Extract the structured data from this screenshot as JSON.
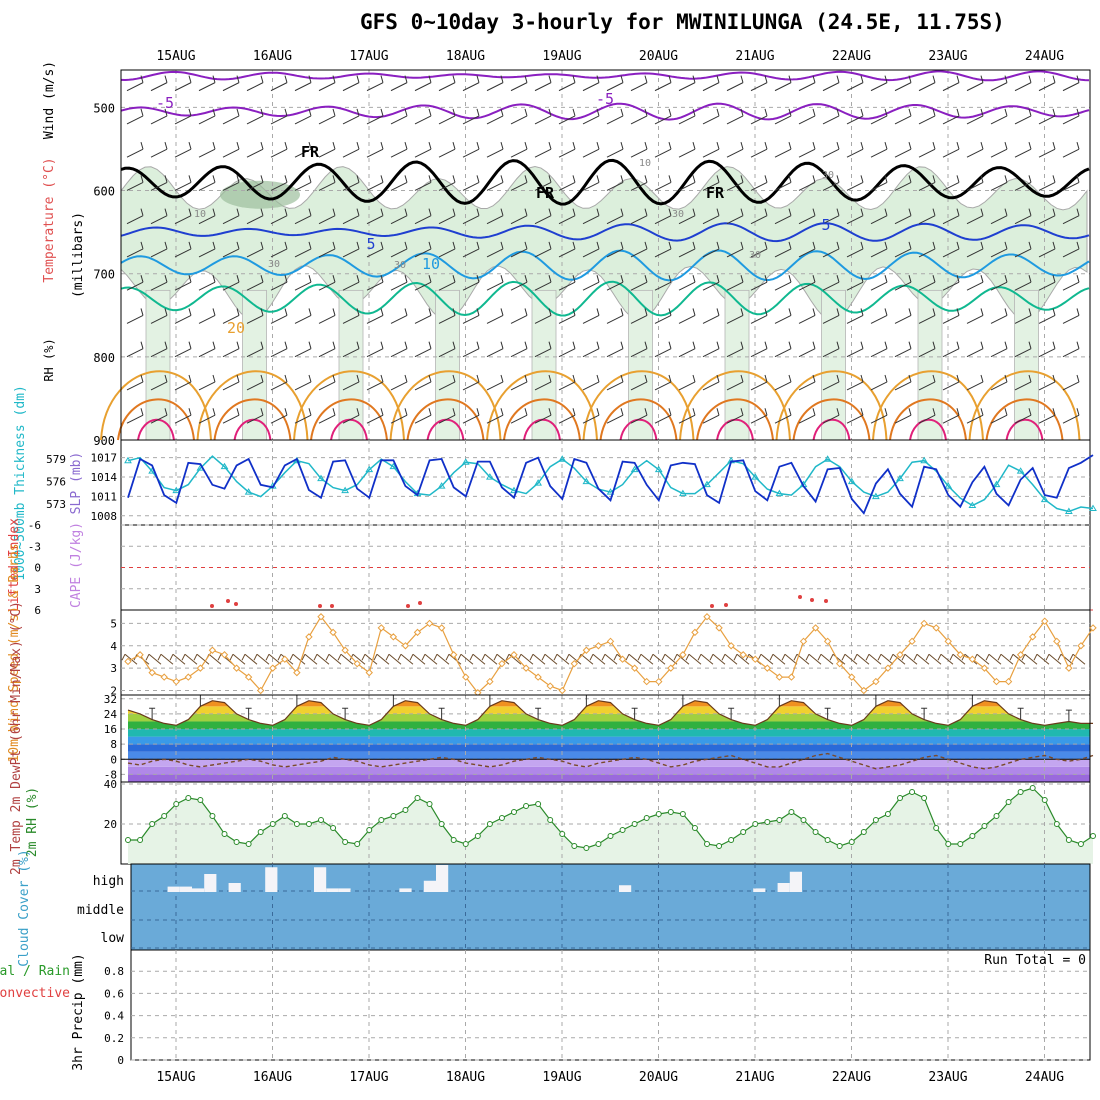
{
  "title": "GFS 0~10day 3-hourly for MWINILUNGA (24.5E, 11.75S)",
  "dates": [
    "15AUG",
    "16AUG",
    "17AUG",
    "18AUG",
    "19AUG",
    "20AUG",
    "21AUG",
    "22AUG",
    "23AUG",
    "24AUG"
  ],
  "colors": {
    "purple": "#8a1fc0",
    "black": "#000000",
    "blue": "#1f3fd0",
    "lightblue": "#1f9ae0",
    "teal": "#10b890",
    "gold": "#e8a030",
    "orange": "#e07820",
    "magenta": "#e0207a",
    "cyan": "#20b8c8",
    "slpblue": "#1030c8",
    "rhgreen": "#2a8a2a",
    "cloud": "#6aaad8"
  },
  "chart_data": [
    {
      "type": "heatmap",
      "panel": "upper_air",
      "ylabel": "(millibars)",
      "side_labels": [
        "Wind (m/s)",
        "Temperature (°C)",
        "RH (%)"
      ],
      "yticks": [
        500,
        600,
        700,
        800,
        900
      ],
      "ylim": [
        455,
        900
      ],
      "contour_labels": [
        "-5",
        "-5",
        "FR",
        "FR",
        "FR",
        "10",
        "10",
        "30",
        "30",
        "30",
        "30",
        "30",
        "5",
        "5",
        "10",
        "20"
      ]
    },
    {
      "type": "line",
      "panel": "thickness_slp",
      "ylabel_left": "1000~500mb Thickness (dm)",
      "ylabel_right": "SLP (mb)",
      "yticks_left": [
        579,
        576,
        573
      ],
      "yticks_right": [
        1017,
        1014,
        1011,
        1008
      ],
      "series": [
        {
          "name": "1000~500mb Thickness (dm)",
          "values": [
            578.8,
            579.2,
            577.4,
            575.2,
            574.8,
            575.6,
            577.8,
            579.4,
            578.0,
            576.0,
            574.6,
            574.0,
            575.4,
            577.2,
            578.8,
            578.4,
            576.4,
            575.2,
            574.8,
            575.6,
            577.6,
            579.0,
            578.0,
            576.0,
            574.4,
            574.2,
            575.4,
            577.2,
            578.6,
            578.4,
            576.6,
            575.6,
            574.8,
            574.4,
            575.8,
            578.0,
            579.0,
            577.8,
            576.0,
            575.0,
            574.6,
            575.6,
            577.6,
            578.8,
            577.6,
            575.2,
            574.4,
            574.4,
            575.6,
            577.2,
            578.8,
            578.4,
            576.6,
            575.0,
            574.4,
            574.2,
            575.6,
            578.0,
            579.0,
            578.0,
            576.0,
            574.6,
            574.0,
            574.6,
            576.4,
            578.6,
            578.8,
            577.4,
            575.4,
            573.8,
            572.8,
            573.6,
            575.6,
            578.2,
            577.4,
            575.6,
            573.6,
            572.4,
            572.0,
            572.6,
            572.4
          ]
        },
        {
          "name": "SLP (mb)",
          "values": [
            1010.8,
            1016.8,
            1015.8,
            1011.2,
            1010.0,
            1016.2,
            1016.0,
            1012.8,
            1012.2,
            1015.8,
            1016.8,
            1012.8,
            1012.4,
            1015.8,
            1016.8,
            1012.0,
            1010.8,
            1016.4,
            1016.6,
            1012.2,
            1010.8,
            1016.6,
            1016.6,
            1012.6,
            1011.2,
            1016.6,
            1016.8,
            1012.4,
            1011.0,
            1016.4,
            1016.4,
            1012.4,
            1010.8,
            1016.2,
            1017.0,
            1012.6,
            1010.6,
            1016.8,
            1016.2,
            1012.2,
            1010.4,
            1016.4,
            1016.2,
            1012.8,
            1010.4,
            1015.8,
            1016.2,
            1016.0,
            1011.2,
            1010.0,
            1016.4,
            1016.6,
            1011.8,
            1010.4,
            1015.6,
            1016.2,
            1012.6,
            1010.2,
            1015.2,
            1015.4,
            1010.6,
            1008.4,
            1013.0,
            1015.2,
            1011.4,
            1009.4,
            1015.6,
            1015.2,
            1011.2,
            1009.4,
            1013.2,
            1015.6,
            1011.4,
            1009.6,
            1013.6,
            1015.4,
            1011.2,
            1010.8,
            1015.4,
            1016.2,
            1017.4
          ]
        }
      ]
    },
    {
      "type": "line",
      "panel": "stability",
      "ylabel_left": "Lifted Index",
      "ylabel_right": "CAPE (J/kg)",
      "yticks": [
        -6,
        -3,
        0,
        3,
        6
      ],
      "ylim": [
        -6,
        6
      ],
      "series": [
        {
          "name": "Lifted Index",
          "values": [
            6.9,
            6.9,
            6.9,
            6.9,
            6.9,
            6.9,
            6.9,
            6.9,
            6.9,
            6.9,
            6.9,
            6.9,
            6.9,
            6.9,
            6.9,
            6.9,
            6.9,
            6.9,
            6.9,
            6.9,
            6.9,
            6.9,
            6.9,
            6.9,
            6.9,
            6.9,
            6.9,
            6.9,
            6.9,
            6.9,
            6.9,
            6.9,
            6.9,
            6.9,
            6.9,
            6.9,
            6.9,
            6.9,
            6.9,
            6.9,
            6.9,
            6.9,
            6.9,
            6.9,
            6.9,
            6.9,
            6.9,
            6.9,
            6.9,
            6.9,
            6.9,
            6.9,
            6.9,
            6.9,
            6.9,
            6.9,
            6.9,
            6.9,
            6.9,
            6.9,
            6.9,
            6.9,
            6.9,
            6.9,
            6.9,
            6.9,
            6.9,
            6.9,
            6.9,
            6.9,
            6.9,
            6.9,
            6.9,
            6.9,
            6.9,
            6.9,
            6.9,
            6.9,
            6.9,
            6.9,
            6.9
          ]
        }
      ]
    },
    {
      "type": "line",
      "panel": "wind10m",
      "ylabel": "10m Wind Speed (m/s) & Barbs",
      "yticks": [
        2,
        3,
        4,
        5
      ],
      "ylim": [
        1.8,
        5.6
      ],
      "series": [
        {
          "name": "10m Wind Speed",
          "values": [
            3.3,
            3.6,
            2.8,
            2.6,
            2.4,
            2.6,
            3.0,
            3.8,
            3.6,
            3.0,
            2.6,
            2.0,
            3.0,
            3.4,
            2.8,
            4.4,
            5.3,
            4.6,
            3.8,
            3.2,
            2.8,
            4.8,
            4.4,
            4.0,
            4.6,
            5.0,
            4.8,
            3.6,
            2.6,
            1.9,
            2.4,
            3.2,
            3.6,
            3.0,
            2.6,
            2.2,
            2.0,
            3.2,
            3.8,
            4.0,
            4.2,
            3.4,
            3.0,
            2.4,
            2.4,
            3.0,
            3.6,
            4.6,
            5.3,
            4.8,
            4.0,
            3.6,
            3.4,
            3.0,
            2.6,
            2.6,
            4.2,
            4.8,
            4.2,
            3.2,
            2.6,
            2.0,
            2.4,
            3.0,
            3.6,
            4.2,
            5.0,
            4.8,
            4.2,
            3.6,
            3.4,
            3.0,
            2.4,
            2.4,
            3.6,
            4.4,
            5.1,
            4.2,
            3.0,
            4.0,
            4.8
          ]
        }
      ]
    },
    {
      "type": "area",
      "panel": "temperature2m",
      "ylabel": "2m Temp 2m DewPt (6hr Min/Max) (°C)",
      "yticks": [
        32,
        24,
        16,
        8,
        0,
        -8
      ],
      "ylim": [
        -12,
        34
      ],
      "series": [
        {
          "name": "2m Temp",
          "values": [
            26,
            24,
            21,
            19,
            18,
            21,
            28,
            31,
            30,
            24,
            21,
            19,
            18,
            21,
            28,
            31,
            30,
            24,
            21,
            19,
            18,
            21,
            28,
            31,
            30,
            24,
            21,
            19,
            18,
            21,
            28,
            31,
            30,
            24,
            21,
            19,
            18,
            21,
            28,
            31,
            30,
            24,
            21,
            19,
            18,
            21,
            28,
            31,
            30,
            24,
            21,
            19,
            18,
            21,
            28,
            31,
            30,
            24,
            21,
            19,
            18,
            21,
            28,
            31,
            30,
            24,
            21,
            19,
            18,
            21,
            28,
            31,
            30,
            24,
            21,
            19,
            18,
            19,
            20,
            19,
            19
          ]
        },
        {
          "name": "2m DewPt",
          "values": [
            -2,
            -3,
            -1,
            0,
            -1,
            -3,
            -4,
            -3,
            -2,
            -1,
            0,
            -1,
            -3,
            -4,
            -3,
            -2,
            -1,
            1,
            0,
            -1,
            -3,
            -4,
            -3,
            -2,
            -1,
            0,
            1,
            0,
            -2,
            -3,
            -4,
            -3,
            -1,
            0,
            1,
            0,
            -1,
            -3,
            -4,
            -2,
            -1,
            0,
            1,
            0,
            -2,
            -4,
            -3,
            -1,
            0,
            1,
            2,
            0,
            -2,
            -4,
            -4,
            -2,
            0,
            2,
            3,
            1,
            -1,
            -3,
            -5,
            -4,
            -3,
            -1,
            1,
            2,
            0,
            -2,
            -4,
            -5,
            -4,
            -2,
            0,
            1,
            2,
            0,
            -1,
            0,
            2
          ]
        }
      ]
    },
    {
      "type": "area",
      "panel": "rh2m",
      "ylabel": "2m RH (%)",
      "yticks": [
        40,
        20
      ],
      "ylim": [
        0,
        41
      ],
      "series": [
        {
          "name": "2m RH",
          "values": [
            12,
            12,
            20,
            24,
            30,
            33,
            32,
            24,
            15,
            11,
            10,
            16,
            20,
            24,
            20,
            20,
            22,
            18,
            11,
            10,
            17,
            22,
            24,
            27,
            33,
            30,
            20,
            12,
            10,
            14,
            20,
            23,
            26,
            29,
            30,
            22,
            15,
            9,
            8,
            10,
            14,
            17,
            20,
            23,
            25,
            26,
            25,
            18,
            10,
            9,
            12,
            16,
            20,
            21,
            22,
            26,
            22,
            16,
            12,
            9,
            11,
            16,
            22,
            25,
            33,
            36,
            33,
            18,
            10,
            10,
            14,
            19,
            24,
            31,
            36,
            38,
            32,
            20,
            12,
            10,
            14
          ]
        }
      ]
    },
    {
      "type": "bar",
      "panel": "cloud_cover",
      "ylabel": "Cloud Cover (%)",
      "ytick_labels": [
        "high",
        "middle",
        "low"
      ],
      "series": [
        {
          "name": "high",
          "values": [
            0,
            0,
            0,
            12,
            12,
            8,
            40,
            0,
            20,
            0,
            0,
            55,
            0,
            0,
            0,
            55,
            8,
            8,
            0,
            0,
            0,
            0,
            8,
            0,
            25,
            60,
            0,
            0,
            0,
            0,
            0,
            0,
            0,
            0,
            0,
            0,
            0,
            0,
            0,
            0,
            15,
            0,
            0,
            0,
            0,
            0,
            0,
            0,
            0,
            0,
            0,
            8,
            0,
            20,
            45,
            0,
            0,
            0,
            0,
            0,
            0,
            0,
            0,
            0,
            0,
            0,
            0,
            0,
            0,
            0,
            0,
            0,
            0,
            0,
            0,
            0,
            0,
            0,
            0,
            0,
            0,
            0,
            0,
            0,
            0,
            0,
            0,
            0,
            0,
            0,
            0,
            0,
            0,
            0
          ]
        }
      ]
    },
    {
      "type": "bar",
      "panel": "precip",
      "ylabel": "3hr Precip (mm)",
      "side_labels": [
        "Total / Rain",
        "Convective"
      ],
      "annotation": "Run Total = 0",
      "yticks": [
        0,
        0.2,
        0.4,
        0.6,
        0.8
      ],
      "ylim": [
        0,
        1.0
      ],
      "series": [
        {
          "name": "Total / Rain",
          "values": [
            0,
            0,
            0,
            0,
            0,
            0,
            0,
            0,
            0,
            0,
            0,
            0,
            0,
            0,
            0,
            0,
            0,
            0,
            0,
            0,
            0,
            0,
            0,
            0,
            0,
            0,
            0,
            0,
            0,
            0,
            0,
            0,
            0,
            0,
            0,
            0,
            0,
            0,
            0,
            0,
            0,
            0,
            0,
            0,
            0,
            0,
            0,
            0,
            0,
            0,
            0,
            0,
            0,
            0,
            0,
            0,
            0,
            0,
            0,
            0,
            0,
            0,
            0,
            0,
            0,
            0,
            0,
            0,
            0,
            0,
            0,
            0,
            0,
            0,
            0,
            0,
            0,
            0,
            0,
            0,
            0
          ]
        }
      ]
    }
  ]
}
